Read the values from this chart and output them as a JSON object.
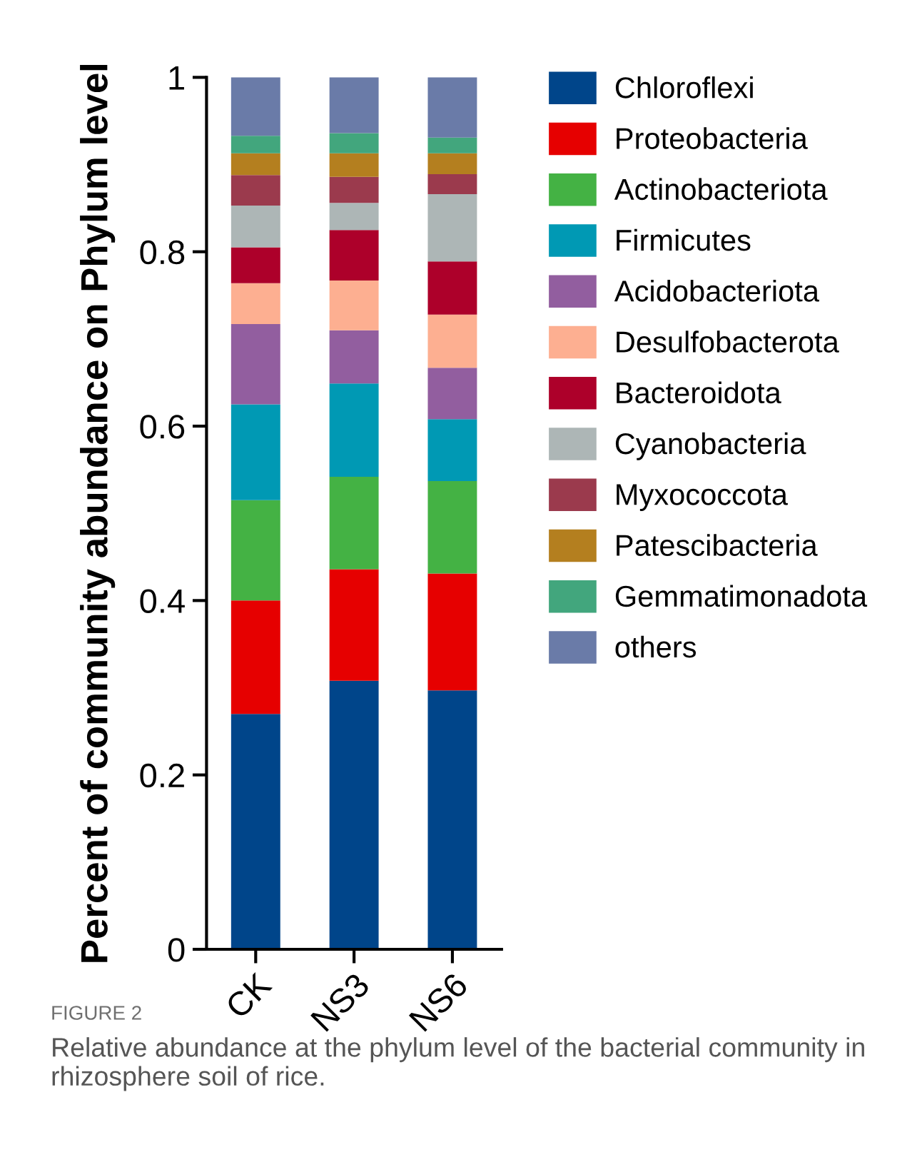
{
  "chart_data": {
    "type": "bar",
    "stacked": true,
    "ylabel": "Percent of community abundance on Phylum level",
    "categories": [
      "CK",
      "NS3",
      "NS6"
    ],
    "series": [
      {
        "name": "Chloroflexi",
        "color": "#00458a",
        "values": [
          0.27,
          0.308,
          0.297
        ]
      },
      {
        "name": "Proteobacteria",
        "color": "#e60000",
        "values": [
          0.13,
          0.128,
          0.134
        ]
      },
      {
        "name": "Actinobacteriota",
        "color": "#44b244",
        "values": [
          0.115,
          0.106,
          0.106
        ]
      },
      {
        "name": "Firmicutes",
        "color": "#0099b4",
        "values": [
          0.11,
          0.107,
          0.071
        ]
      },
      {
        "name": "Acidobacteriota",
        "color": "#925e9f",
        "values": [
          0.092,
          0.061,
          0.059
        ]
      },
      {
        "name": "Desulfobacterota",
        "color": "#fdaf91",
        "values": [
          0.047,
          0.057,
          0.061
        ]
      },
      {
        "name": "Bacteroidota",
        "color": "#ad002a",
        "values": [
          0.041,
          0.058,
          0.061
        ]
      },
      {
        "name": "Cyanobacteria",
        "color": "#adb6b6",
        "values": [
          0.048,
          0.031,
          0.077
        ]
      },
      {
        "name": "Myxococcota",
        "color": "#9b3a4d",
        "values": [
          0.035,
          0.03,
          0.023
        ]
      },
      {
        "name": "Patescibacteria",
        "color": "#b47f1f",
        "values": [
          0.025,
          0.027,
          0.024
        ]
      },
      {
        "name": "Gemmatimonadota",
        "color": "#42a67d",
        "values": [
          0.02,
          0.023,
          0.018
        ]
      },
      {
        "name": "others",
        "color": "#6a7ba8",
        "values": [
          0.067,
          0.064,
          0.069
        ]
      }
    ],
    "ylim": [
      0,
      1
    ],
    "yticks": [
      0,
      0.2,
      0.4,
      0.6,
      0.8,
      1
    ],
    "grid": false,
    "legend": "right",
    "annotations": [
      "FIGURE 2",
      "Relative abundance at the phylum level of the bacterial community in rhizosphere soil of rice."
    ]
  }
}
